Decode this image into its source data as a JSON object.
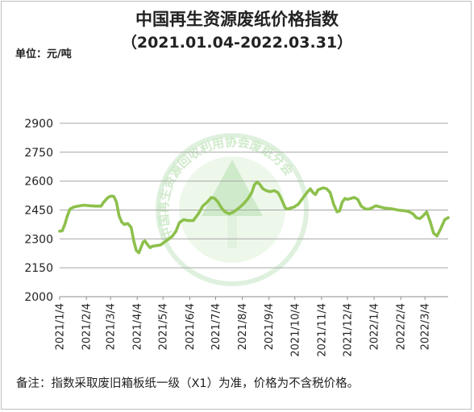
{
  "chart_data": {
    "type": "line",
    "title": "中国再生资源废纸价格指数",
    "subtitle": "（2021.01.04-2022.03.31）",
    "unit_label": "单位：元/吨",
    "note": "备注：指数采取废旧箱板纸一级（X1）为准，价格为不含税价格。",
    "watermark_text": "中国再生资源回收利用协会废纸分会",
    "grid": true,
    "legend": "none",
    "line_color": "#8dc04c",
    "ylim": [
      2000,
      3000
    ],
    "yticks": [
      2000,
      2150,
      2300,
      2450,
      2600,
      2750,
      2900
    ],
    "xticks": [
      "2021/1/4",
      "2021/2/4",
      "2021/3/4",
      "2021/4/4",
      "2021/5/4",
      "2021/6/4",
      "2021/7/4",
      "2021/8/4",
      "2021/9/4",
      "2021/10/4",
      "2021/11/4",
      "2021/12/4",
      "2022/1/4",
      "2022/2/4",
      "2022/3/4"
    ],
    "series": [
      {
        "x": [
          "2021-01-04",
          "2021-01-07",
          "2021-01-10",
          "2021-01-13",
          "2021-01-16",
          "2021-01-20",
          "2021-01-25",
          "2021-02-01",
          "2021-02-08",
          "2021-02-15",
          "2021-02-21",
          "2021-02-24",
          "2021-02-28",
          "2021-03-03",
          "2021-03-06",
          "2021-03-08",
          "2021-03-11",
          "2021-03-14",
          "2021-03-17",
          "2021-03-20",
          "2021-03-24",
          "2021-03-28",
          "2021-03-31",
          "2021-04-03",
          "2021-04-06",
          "2021-04-09",
          "2021-04-11",
          "2021-04-13",
          "2021-04-16",
          "2021-04-19",
          "2021-04-22",
          "2021-04-26",
          "2021-05-01",
          "2021-05-06",
          "2021-05-11",
          "2021-05-15",
          "2021-05-19",
          "2021-05-23",
          "2021-05-28",
          "2021-06-02",
          "2021-06-08",
          "2021-06-14",
          "2021-06-19",
          "2021-06-24",
          "2021-06-29",
          "2021-07-03",
          "2021-07-07",
          "2021-07-11",
          "2021-07-15",
          "2021-07-20",
          "2021-07-25",
          "2021-07-31",
          "2021-08-05",
          "2021-08-10",
          "2021-08-15",
          "2021-08-18",
          "2021-08-21",
          "2021-08-24",
          "2021-08-28",
          "2021-09-01",
          "2021-09-05",
          "2021-09-10",
          "2021-09-14",
          "2021-09-17",
          "2021-09-20",
          "2021-09-23",
          "2021-09-26",
          "2021-09-29",
          "2021-10-03",
          "2021-10-08",
          "2021-10-13",
          "2021-10-18",
          "2021-10-22",
          "2021-10-25",
          "2021-10-28",
          "2021-10-31",
          "2021-11-03",
          "2021-11-06",
          "2021-11-10",
          "2021-11-14",
          "2021-11-18",
          "2021-11-22",
          "2021-11-25",
          "2021-11-28",
          "2021-12-01",
          "2021-12-04",
          "2021-12-08",
          "2021-12-12",
          "2021-12-16",
          "2021-12-20",
          "2021-12-25",
          "2021-12-29",
          "2022-01-02",
          "2022-01-06",
          "2022-01-11",
          "2022-01-16",
          "2022-01-21",
          "2022-01-26",
          "2022-01-31",
          "2022-02-04",
          "2022-02-09",
          "2022-02-14",
          "2022-02-18",
          "2022-02-22",
          "2022-02-26",
          "2022-03-02",
          "2022-03-06",
          "2022-03-10",
          "2022-03-14",
          "2022-03-18",
          "2022-03-22",
          "2022-03-27",
          "2022-03-31"
        ],
        "y": [
          2340,
          2342,
          2375,
          2420,
          2455,
          2465,
          2470,
          2475,
          2472,
          2470,
          2470,
          2490,
          2510,
          2520,
          2522,
          2520,
          2490,
          2420,
          2388,
          2375,
          2380,
          2360,
          2290,
          2240,
          2228,
          2262,
          2285,
          2290,
          2270,
          2255,
          2262,
          2265,
          2268,
          2285,
          2300,
          2315,
          2340,
          2385,
          2400,
          2395,
          2395,
          2430,
          2470,
          2490,
          2515,
          2510,
          2490,
          2460,
          2440,
          2430,
          2440,
          2460,
          2480,
          2505,
          2540,
          2580,
          2595,
          2585,
          2560,
          2550,
          2545,
          2550,
          2542,
          2520,
          2490,
          2460,
          2455,
          2460,
          2465,
          2480,
          2510,
          2540,
          2560,
          2540,
          2530,
          2555,
          2560,
          2565,
          2560,
          2540,
          2480,
          2440,
          2445,
          2490,
          2510,
          2505,
          2510,
          2515,
          2505,
          2470,
          2455,
          2455,
          2462,
          2472,
          2466,
          2460,
          2458,
          2455,
          2450,
          2448,
          2446,
          2440,
          2430,
          2410,
          2405,
          2420,
          2440,
          2390,
          2330,
          2315,
          2350,
          2400,
          2410
        ]
      }
    ]
  }
}
